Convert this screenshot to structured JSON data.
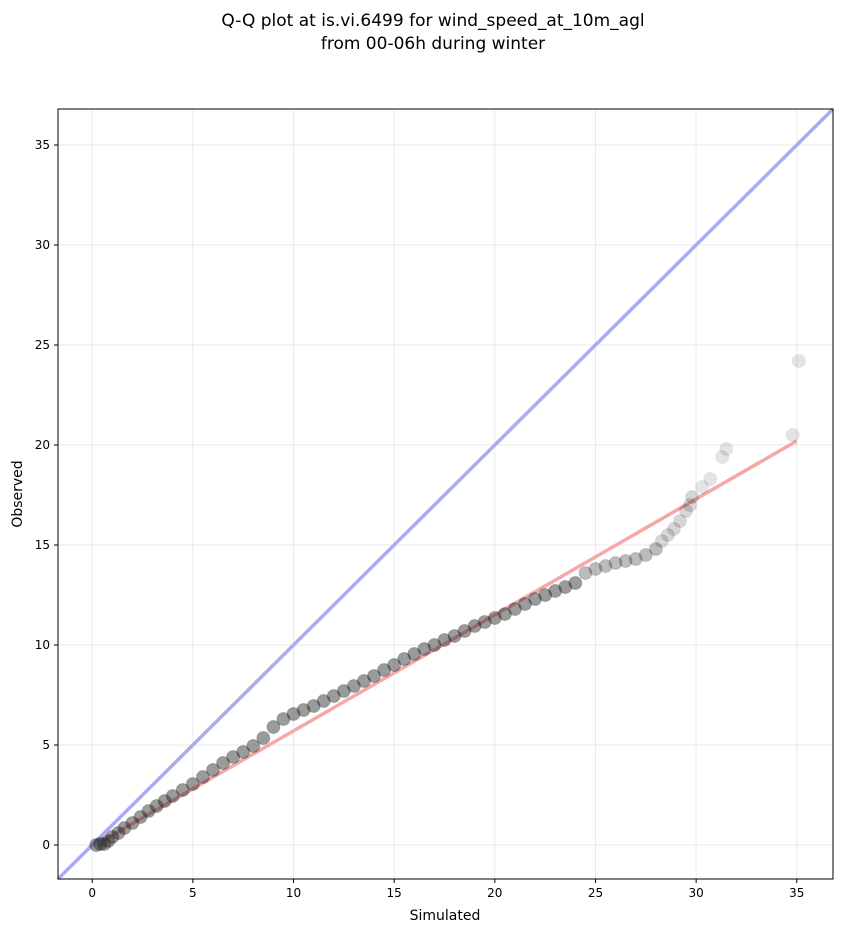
{
  "chart_data": {
    "type": "scatter",
    "title_line1": "Q-Q plot at is.vi.6499 for wind_speed_at_10m_agl",
    "title_line2": "from 00-06h during winter",
    "xlabel": "Simulated",
    "ylabel": "Observed",
    "xlim": [
      -1.7,
      36.8
    ],
    "ylim": [
      -1.7,
      36.8
    ],
    "xticks": [
      0,
      5,
      10,
      15,
      20,
      25,
      30,
      35
    ],
    "yticks": [
      0,
      5,
      10,
      15,
      20,
      25,
      30,
      35
    ],
    "grid": true,
    "colors": {
      "points": "#222222",
      "identity_line": "#a8acf2",
      "fit_line": "#f4a8a8",
      "axes": "#000000"
    },
    "identity_line": {
      "x": [
        -1.7,
        36.8
      ],
      "y": [
        -1.7,
        36.8
      ]
    },
    "fit_line": {
      "x": [
        0.5,
        35.0
      ],
      "y": [
        0.2,
        20.2
      ]
    },
    "points": {
      "x": [
        0.2,
        0.4,
        0.6,
        0.8,
        1.0,
        1.3,
        1.6,
        2.0,
        2.4,
        2.8,
        3.2,
        3.6,
        4.0,
        4.5,
        5.0,
        5.5,
        6.0,
        6.5,
        7.0,
        7.5,
        8.0,
        8.5,
        9.0,
        9.5,
        10.0,
        10.5,
        11.0,
        11.5,
        12.0,
        12.5,
        13.0,
        13.5,
        14.0,
        14.5,
        15.0,
        15.5,
        16.0,
        16.5,
        17.0,
        17.5,
        18.0,
        18.5,
        19.0,
        19.5,
        20.0,
        20.5,
        21.0,
        21.5,
        22.0,
        22.5,
        23.0,
        23.5,
        24.0,
        24.5,
        25.0,
        25.5,
        26.0,
        26.5,
        27.0,
        27.5,
        28.0,
        28.3,
        28.6,
        28.9,
        29.2,
        29.5,
        29.7,
        29.8,
        30.3,
        30.7,
        31.3,
        31.5,
        34.8,
        35.1
      ],
      "y": [
        0.0,
        0.05,
        0.05,
        0.2,
        0.4,
        0.6,
        0.85,
        1.1,
        1.4,
        1.7,
        1.95,
        2.2,
        2.45,
        2.75,
        3.05,
        3.4,
        3.75,
        4.1,
        4.4,
        4.65,
        4.95,
        5.35,
        5.9,
        6.3,
        6.55,
        6.75,
        6.95,
        7.2,
        7.45,
        7.7,
        7.95,
        8.2,
        8.45,
        8.75,
        9.0,
        9.3,
        9.55,
        9.8,
        10.0,
        10.25,
        10.45,
        10.7,
        10.95,
        11.15,
        11.35,
        11.55,
        11.8,
        12.05,
        12.3,
        12.5,
        12.7,
        12.9,
        13.1,
        13.6,
        13.8,
        13.95,
        14.1,
        14.2,
        14.3,
        14.5,
        14.8,
        15.2,
        15.5,
        15.8,
        16.2,
        16.7,
        17.0,
        17.4,
        17.9,
        18.3,
        19.4,
        19.8,
        20.5,
        24.2
      ]
    }
  }
}
